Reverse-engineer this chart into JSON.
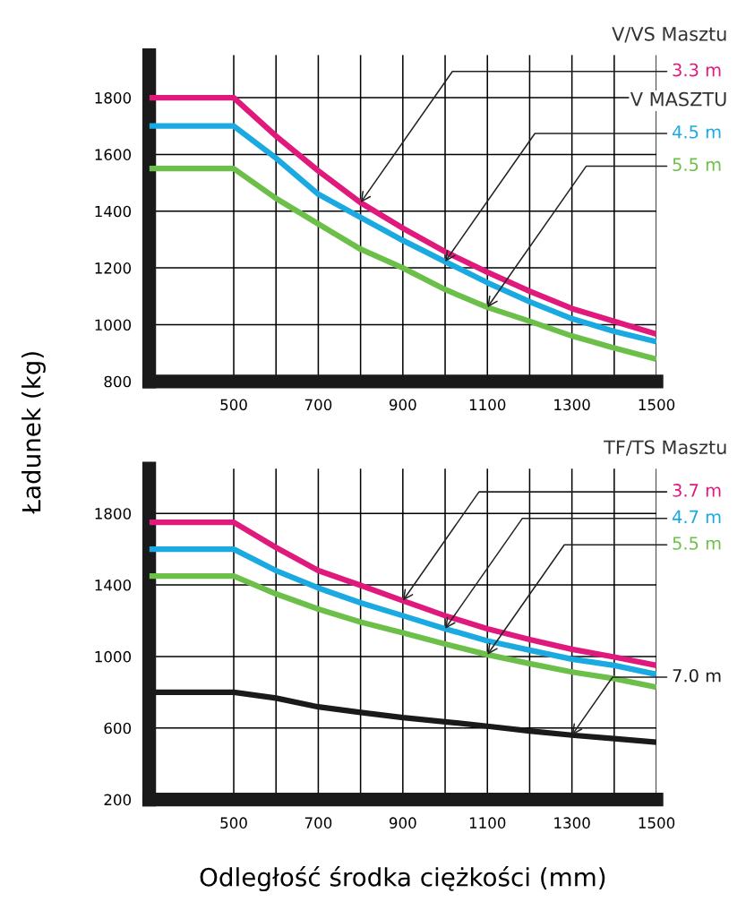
{
  "chart_data": [
    {
      "type": "line",
      "x": [
        300,
        500,
        600,
        700,
        800,
        900,
        1000,
        1100,
        1200,
        1300,
        1400,
        1500
      ],
      "xlim": [
        300,
        1500
      ],
      "ylim": [
        800,
        1950
      ],
      "xticks": [
        500,
        {
          "value": 600,
          "label": null
        },
        700,
        {
          "value": 800,
          "label": null
        },
        900,
        {
          "value": 1000,
          "label": null
        },
        1100,
        {
          "value": 1200,
          "label": null
        },
        1300,
        {
          "value": 1400,
          "label": null
        },
        1500
      ],
      "yticks": [
        800,
        1000,
        1200,
        1400,
        1600,
        1800
      ],
      "grid": true,
      "annotations": [
        "V/VS Masztu",
        "V MASZTU"
      ],
      "series": [
        {
          "name": "3.3 m",
          "color": "#e0197d",
          "values": [
            1800,
            1800,
            1665,
            1542,
            1430,
            1340,
            1257,
            1185,
            1118,
            1057,
            1012,
            967
          ]
        },
        {
          "name": "4.5 m",
          "color": "#1ba9e1",
          "values": [
            1700,
            1700,
            1587,
            1460,
            1378,
            1297,
            1222,
            1148,
            1081,
            1021,
            976,
            940
          ]
        },
        {
          "name": "5.5 m",
          "color": "#6cc04a",
          "values": [
            1550,
            1550,
            1445,
            1355,
            1266,
            1200,
            1124,
            1061,
            1012,
            960,
            918,
            878
          ]
        }
      ]
    },
    {
      "type": "line",
      "x": [
        300,
        500,
        600,
        700,
        800,
        900,
        1000,
        1100,
        1200,
        1300,
        1400,
        1500
      ],
      "xlim": [
        300,
        1500
      ],
      "ylim": [
        200,
        2050
      ],
      "xticks": [
        500,
        {
          "value": 600,
          "label": null
        },
        700,
        {
          "value": 800,
          "label": null
        },
        900,
        {
          "value": 1000,
          "label": null
        },
        1100,
        {
          "value": 1200,
          "label": null
        },
        1300,
        {
          "value": 1400,
          "label": null
        },
        1500
      ],
      "yticks": [
        200,
        600,
        1000,
        1400,
        1800
      ],
      "grid": true,
      "ylabel": "Ładunek (kg)",
      "xlabel": "Odległość środka ciężkości (mm)",
      "annotations": [
        "TF/TS Masztu"
      ],
      "series": [
        {
          "name": "3.7 m",
          "color": "#e0197d",
          "values": [
            1750,
            1750,
            1609,
            1480,
            1398,
            1312,
            1228,
            1155,
            1095,
            1040,
            997,
            950
          ]
        },
        {
          "name": "4.7 m",
          "color": "#1ba9e1",
          "values": [
            1600,
            1600,
            1480,
            1383,
            1300,
            1228,
            1155,
            1087,
            1035,
            985,
            950,
            900
          ]
        },
        {
          "name": "5.5 m",
          "color": "#6cc04a",
          "values": [
            1450,
            1450,
            1350,
            1265,
            1192,
            1132,
            1070,
            1010,
            960,
            913,
            876,
            828
          ]
        },
        {
          "name": "7.0 m",
          "color": "#1a1a1a",
          "values": [
            800,
            800,
            767,
            718,
            687,
            658,
            635,
            610,
            583,
            560,
            540,
            520
          ]
        }
      ]
    }
  ]
}
